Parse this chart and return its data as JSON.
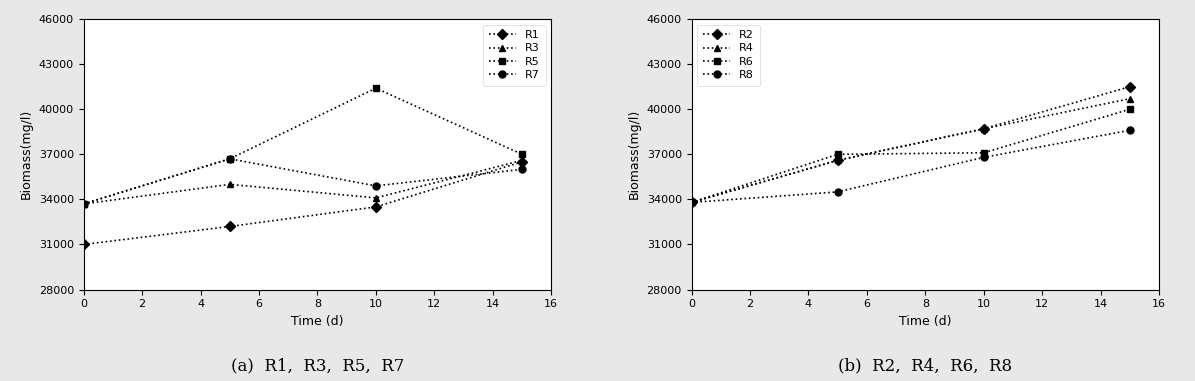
{
  "time": [
    0,
    5,
    10,
    15
  ],
  "chart_a": {
    "R1": [
      31000,
      32200,
      33500,
      36500
    ],
    "R3": [
      33700,
      35000,
      34100,
      36600
    ],
    "R5": [
      33700,
      36700,
      41400,
      37000
    ],
    "R7": [
      33700,
      36700,
      34900,
      36000
    ]
  },
  "chart_b": {
    "R2": [
      33800,
      36600,
      38700,
      41500
    ],
    "R4": [
      33800,
      36600,
      38700,
      40700
    ],
    "R6": [
      33800,
      37000,
      37100,
      40000
    ],
    "R8": [
      33800,
      34500,
      36800,
      38600
    ]
  },
  "markers_a": {
    "R1": "D",
    "R3": "^",
    "R5": "s",
    "R7": "o"
  },
  "markers_b": {
    "R2": "D",
    "R4": "^",
    "R6": "s",
    "R8": "o"
  },
  "ylabel": "Biomass(mg/l)",
  "xlabel": "Time (d)",
  "ylim": [
    28000,
    46000
  ],
  "xlim": [
    0,
    16
  ],
  "yticks": [
    28000,
    31000,
    34000,
    37000,
    40000,
    43000,
    46000
  ],
  "xticks": [
    0,
    2,
    4,
    6,
    8,
    10,
    12,
    14,
    16
  ],
  "caption_a": "(a)  R1,  R3,  R5,  R7",
  "caption_b": "(b)  R2,  R4,  R6,  R8",
  "color": "#000000",
  "linestyle": "dotted",
  "linewidth": 1.2,
  "markersize": 5,
  "legend_loc_a": "upper right",
  "legend_loc_b": "upper left",
  "bg_color": "#e8e8e8"
}
